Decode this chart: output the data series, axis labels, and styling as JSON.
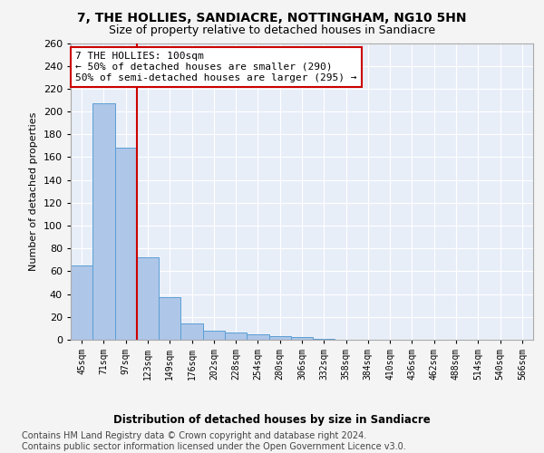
{
  "title": "7, THE HOLLIES, SANDIACRE, NOTTINGHAM, NG10 5HN",
  "subtitle": "Size of property relative to detached houses in Sandiacre",
  "xlabel": "Distribution of detached houses by size in Sandiacre",
  "ylabel": "Number of detached properties",
  "categories": [
    "45sqm",
    "71sqm",
    "97sqm",
    "123sqm",
    "149sqm",
    "176sqm",
    "202sqm",
    "228sqm",
    "254sqm",
    "280sqm",
    "306sqm",
    "332sqm",
    "358sqm",
    "384sqm",
    "410sqm",
    "436sqm",
    "462sqm",
    "488sqm",
    "514sqm",
    "540sqm",
    "566sqm"
  ],
  "values": [
    65,
    207,
    168,
    72,
    37,
    14,
    8,
    6,
    5,
    3,
    2,
    1,
    0,
    0,
    0,
    0,
    0,
    0,
    0,
    0,
    0
  ],
  "bar_color": "#aec6e8",
  "bar_edge_color": "#5a9fd4",
  "redline_index": 2,
  "redline_color": "#cc0000",
  "annotation_text": "7 THE HOLLIES: 100sqm\n← 50% of detached houses are smaller (290)\n50% of semi-detached houses are larger (295) →",
  "annotation_box_color": "#ffffff",
  "annotation_box_edge": "#cc0000",
  "ylim": [
    0,
    260
  ],
  "yticks": [
    0,
    20,
    40,
    60,
    80,
    100,
    120,
    140,
    160,
    180,
    200,
    220,
    240,
    260
  ],
  "footer_line1": "Contains HM Land Registry data © Crown copyright and database right 2024.",
  "footer_line2": "Contains public sector information licensed under the Open Government Licence v3.0.",
  "background_color": "#e8eef8",
  "grid_color": "#ffffff",
  "fig_background": "#f4f4f4",
  "title_fontsize": 10,
  "subtitle_fontsize": 9,
  "annotation_fontsize": 8,
  "ylabel_fontsize": 8,
  "xlabel_fontsize": 8.5,
  "footer_fontsize": 7,
  "xtick_fontsize": 7,
  "ytick_fontsize": 8
}
